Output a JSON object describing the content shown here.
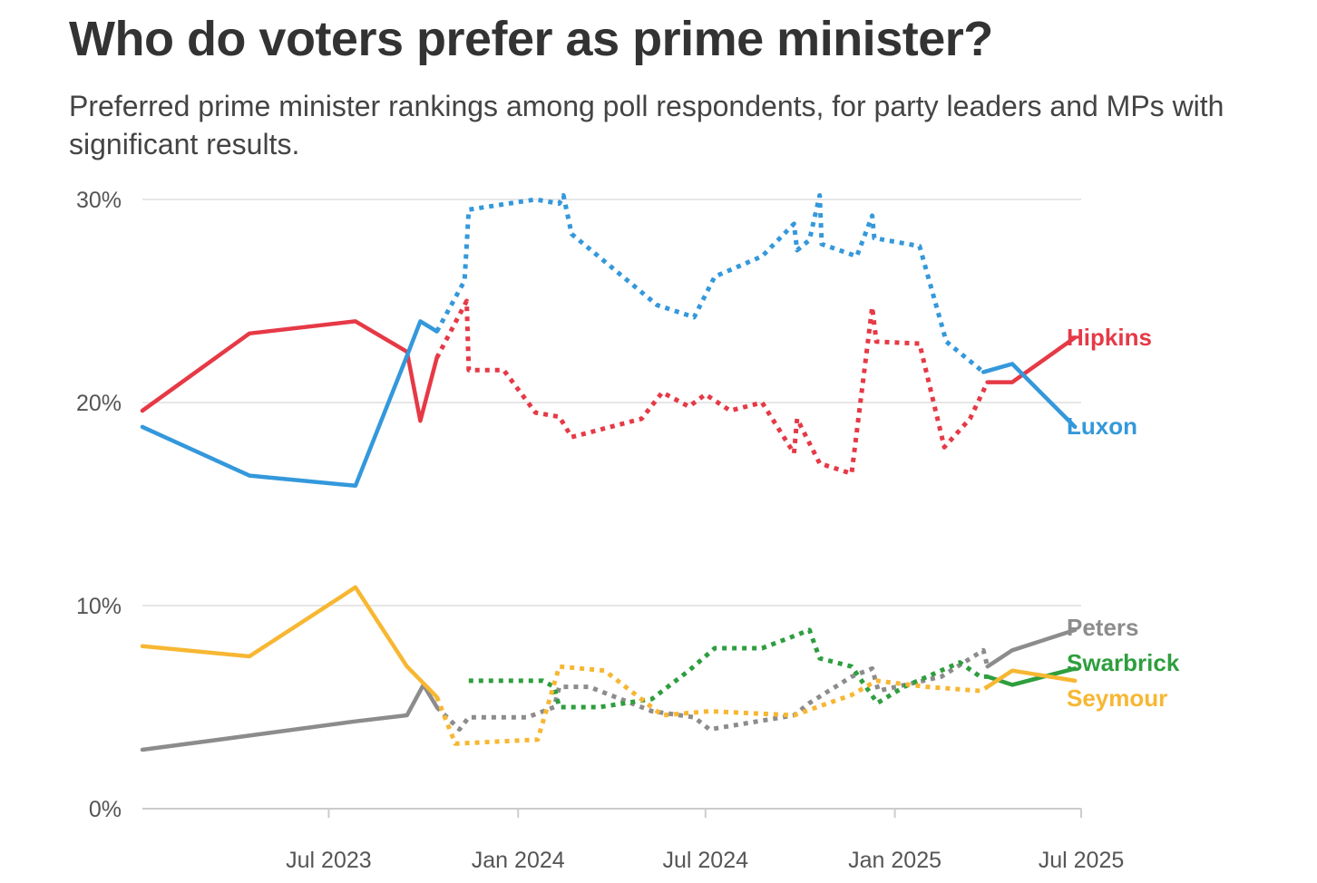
{
  "chart_data": {
    "type": "line",
    "title": "Who do voters prefer as prime minister?",
    "subtitle": "Preferred prime minister rankings among poll respondents, for party leaders and MPs with significant results.",
    "xlabel": "",
    "ylabel": "",
    "ylim": [
      0,
      30
    ],
    "xlim": [
      "2023-01-01",
      "2025-07-01"
    ],
    "y_ticks": [
      {
        "value": 0,
        "label": "0%"
      },
      {
        "value": 10,
        "label": "10%"
      },
      {
        "value": 20,
        "label": "20%"
      },
      {
        "value": 30,
        "label": "30%"
      }
    ],
    "x_ticks": [
      {
        "date": "2023-07-01",
        "label": "Jul 2023"
      },
      {
        "date": "2024-01-01",
        "label": "Jan 2024"
      },
      {
        "date": "2024-07-01",
        "label": "Jul 2024"
      },
      {
        "date": "2025-01-01",
        "label": "Jan 2025"
      },
      {
        "date": "2025-07-01",
        "label": "Jul 2025"
      }
    ],
    "grid": true,
    "legend": "direct labels at right end of lines",
    "colors": {
      "Hipkins": "#e63946",
      "Luxon": "#3498db",
      "Peters": "#8c8c8c",
      "Swarbrick": "#2e9e3e",
      "Seymour": "#f7b733",
      "grid": "#e6e6e6",
      "axis": "#cccccc"
    },
    "series": [
      {
        "name": "Hipkins",
        "label": "Hipkins",
        "segments": [
          {
            "style": "solid",
            "points": [
              [
                "2023-01-01",
                19.6
              ],
              [
                "2023-04-15",
                23.4
              ],
              [
                "2023-07-27",
                24.0
              ],
              [
                "2023-09-15",
                22.5
              ],
              [
                "2023-09-28",
                19.1
              ],
              [
                "2023-10-14",
                22.2
              ]
            ]
          },
          {
            "style": "dotted",
            "points": [
              [
                "2023-10-14",
                22.2
              ],
              [
                "2023-11-12",
                25.0
              ],
              [
                "2023-11-14",
                21.6
              ],
              [
                "2023-12-18",
                21.6
              ],
              [
                "2024-01-18",
                19.5
              ],
              [
                "2024-02-10",
                19.3
              ],
              [
                "2024-02-22",
                18.3
              ],
              [
                "2024-04-30",
                19.2
              ],
              [
                "2024-05-20",
                20.5
              ],
              [
                "2024-06-15",
                19.8
              ],
              [
                "2024-07-01",
                20.4
              ],
              [
                "2024-07-25",
                19.6
              ],
              [
                "2024-08-25",
                20.0
              ],
              [
                "2024-09-25",
                17.5
              ],
              [
                "2024-09-28",
                19.2
              ],
              [
                "2024-10-20",
                17.0
              ],
              [
                "2024-11-20",
                16.5
              ],
              [
                "2024-12-10",
                24.7
              ],
              [
                "2024-12-14",
                23.0
              ],
              [
                "2025-01-25",
                22.9
              ],
              [
                "2025-02-18",
                17.8
              ],
              [
                "2025-03-15",
                19.2
              ],
              [
                "2025-04-01",
                21.0
              ]
            ]
          },
          {
            "style": "solid",
            "points": [
              [
                "2025-04-01",
                21.0
              ],
              [
                "2025-04-25",
                21.0
              ],
              [
                "2025-06-25",
                23.2
              ]
            ]
          }
        ]
      },
      {
        "name": "Luxon",
        "label": "Luxon",
        "segments": [
          {
            "style": "solid",
            "points": [
              [
                "2023-01-01",
                18.8
              ],
              [
                "2023-04-15",
                16.4
              ],
              [
                "2023-07-27",
                15.9
              ],
              [
                "2023-09-15",
                22.3
              ],
              [
                "2023-09-28",
                24.0
              ],
              [
                "2023-10-14",
                23.5
              ]
            ]
          },
          {
            "style": "dotted",
            "points": [
              [
                "2023-10-14",
                23.5
              ],
              [
                "2023-11-10",
                26.0
              ],
              [
                "2023-11-14",
                29.5
              ],
              [
                "2024-01-18",
                30.0
              ],
              [
                "2024-02-10",
                29.8
              ],
              [
                "2024-02-14",
                30.2
              ],
              [
                "2024-02-22",
                28.3
              ],
              [
                "2024-05-15",
                24.8
              ],
              [
                "2024-06-20",
                24.2
              ],
              [
                "2024-07-10",
                26.2
              ],
              [
                "2024-08-25",
                27.2
              ],
              [
                "2024-09-25",
                28.8
              ],
              [
                "2024-09-28",
                27.5
              ],
              [
                "2024-10-10",
                28.0
              ],
              [
                "2024-10-20",
                30.2
              ],
              [
                "2024-10-22",
                27.8
              ],
              [
                "2024-11-25",
                27.2
              ],
              [
                "2024-12-10",
                29.2
              ],
              [
                "2024-12-12",
                28.1
              ],
              [
                "2025-01-25",
                27.7
              ],
              [
                "2025-02-20",
                23.0
              ],
              [
                "2025-03-28",
                21.5
              ]
            ]
          },
          {
            "style": "solid",
            "points": [
              [
                "2025-03-28",
                21.5
              ],
              [
                "2025-04-25",
                21.9
              ],
              [
                "2025-06-25",
                18.8
              ]
            ]
          }
        ]
      },
      {
        "name": "Peters",
        "label": "Peters",
        "segments": [
          {
            "style": "solid",
            "points": [
              [
                "2023-01-01",
                2.9
              ],
              [
                "2023-04-15",
                3.6
              ],
              [
                "2023-07-27",
                4.3
              ],
              [
                "2023-09-15",
                4.6
              ],
              [
                "2023-10-01",
                6.1
              ],
              [
                "2023-10-14",
                5.0
              ]
            ]
          },
          {
            "style": "dotted",
            "points": [
              [
                "2023-10-14",
                5.0
              ],
              [
                "2023-11-05",
                3.9
              ],
              [
                "2023-11-14",
                4.5
              ],
              [
                "2024-01-10",
                4.5
              ],
              [
                "2024-02-05",
                5.0
              ],
              [
                "2024-02-10",
                6.0
              ],
              [
                "2024-03-10",
                6.0
              ],
              [
                "2024-05-10",
                4.8
              ],
              [
                "2024-06-20",
                4.5
              ],
              [
                "2024-07-05",
                3.9
              ],
              [
                "2024-09-25",
                4.6
              ],
              [
                "2024-10-10",
                5.2
              ],
              [
                "2024-11-20",
                6.5
              ],
              [
                "2024-12-10",
                6.9
              ],
              [
                "2024-12-16",
                5.8
              ],
              [
                "2025-02-15",
                6.5
              ],
              [
                "2025-03-28",
                7.8
              ],
              [
                "2025-04-01",
                7.0
              ]
            ]
          },
          {
            "style": "solid",
            "points": [
              [
                "2025-04-01",
                7.0
              ],
              [
                "2025-04-25",
                7.8
              ],
              [
                "2025-06-25",
                8.8
              ]
            ]
          }
        ]
      },
      {
        "name": "Swarbrick",
        "label": "Swarbrick",
        "segments": [
          {
            "style": "dotted",
            "points": [
              [
                "2023-11-14",
                6.3
              ],
              [
                "2024-01-25",
                6.3
              ],
              [
                "2024-02-05",
                6.0
              ],
              [
                "2024-02-10",
                5.0
              ],
              [
                "2024-03-20",
                5.0
              ],
              [
                "2024-05-10",
                5.4
              ],
              [
                "2024-06-15",
                6.8
              ],
              [
                "2024-07-10",
                7.9
              ],
              [
                "2024-08-25",
                7.9
              ],
              [
                "2024-09-25",
                8.5
              ],
              [
                "2024-10-10",
                8.8
              ],
              [
                "2024-10-20",
                7.4
              ],
              [
                "2024-11-20",
                7.0
              ],
              [
                "2024-12-15",
                5.2
              ],
              [
                "2025-01-10",
                6.0
              ],
              [
                "2025-03-05",
                7.2
              ],
              [
                "2025-03-25",
                6.5
              ],
              [
                "2025-04-01",
                6.5
              ]
            ]
          },
          {
            "style": "solid",
            "points": [
              [
                "2025-04-01",
                6.5
              ],
              [
                "2025-04-25",
                6.1
              ],
              [
                "2025-06-25",
                6.9
              ]
            ]
          }
        ]
      },
      {
        "name": "Seymour",
        "label": "Seymour",
        "segments": [
          {
            "style": "solid",
            "points": [
              [
                "2023-01-01",
                8.0
              ],
              [
                "2023-04-15",
                7.5
              ],
              [
                "2023-07-27",
                10.9
              ],
              [
                "2023-09-15",
                7.0
              ],
              [
                "2023-10-14",
                5.5
              ]
            ]
          },
          {
            "style": "dotted",
            "points": [
              [
                "2023-10-14",
                5.5
              ],
              [
                "2023-11-01",
                3.2
              ],
              [
                "2024-01-20",
                3.4
              ],
              [
                "2024-02-10",
                7.0
              ],
              [
                "2024-03-25",
                6.8
              ],
              [
                "2024-05-20",
                4.6
              ],
              [
                "2024-07-05",
                4.8
              ],
              [
                "2024-09-25",
                4.6
              ],
              [
                "2024-11-20",
                5.6
              ],
              [
                "2024-12-14",
                6.3
              ],
              [
                "2025-02-01",
                6.0
              ],
              [
                "2025-03-25",
                5.8
              ],
              [
                "2025-04-01",
                6.0
              ]
            ]
          },
          {
            "style": "solid",
            "points": [
              [
                "2025-04-01",
                6.0
              ],
              [
                "2025-04-25",
                6.8
              ],
              [
                "2025-06-25",
                6.3
              ]
            ]
          }
        ]
      }
    ]
  }
}
